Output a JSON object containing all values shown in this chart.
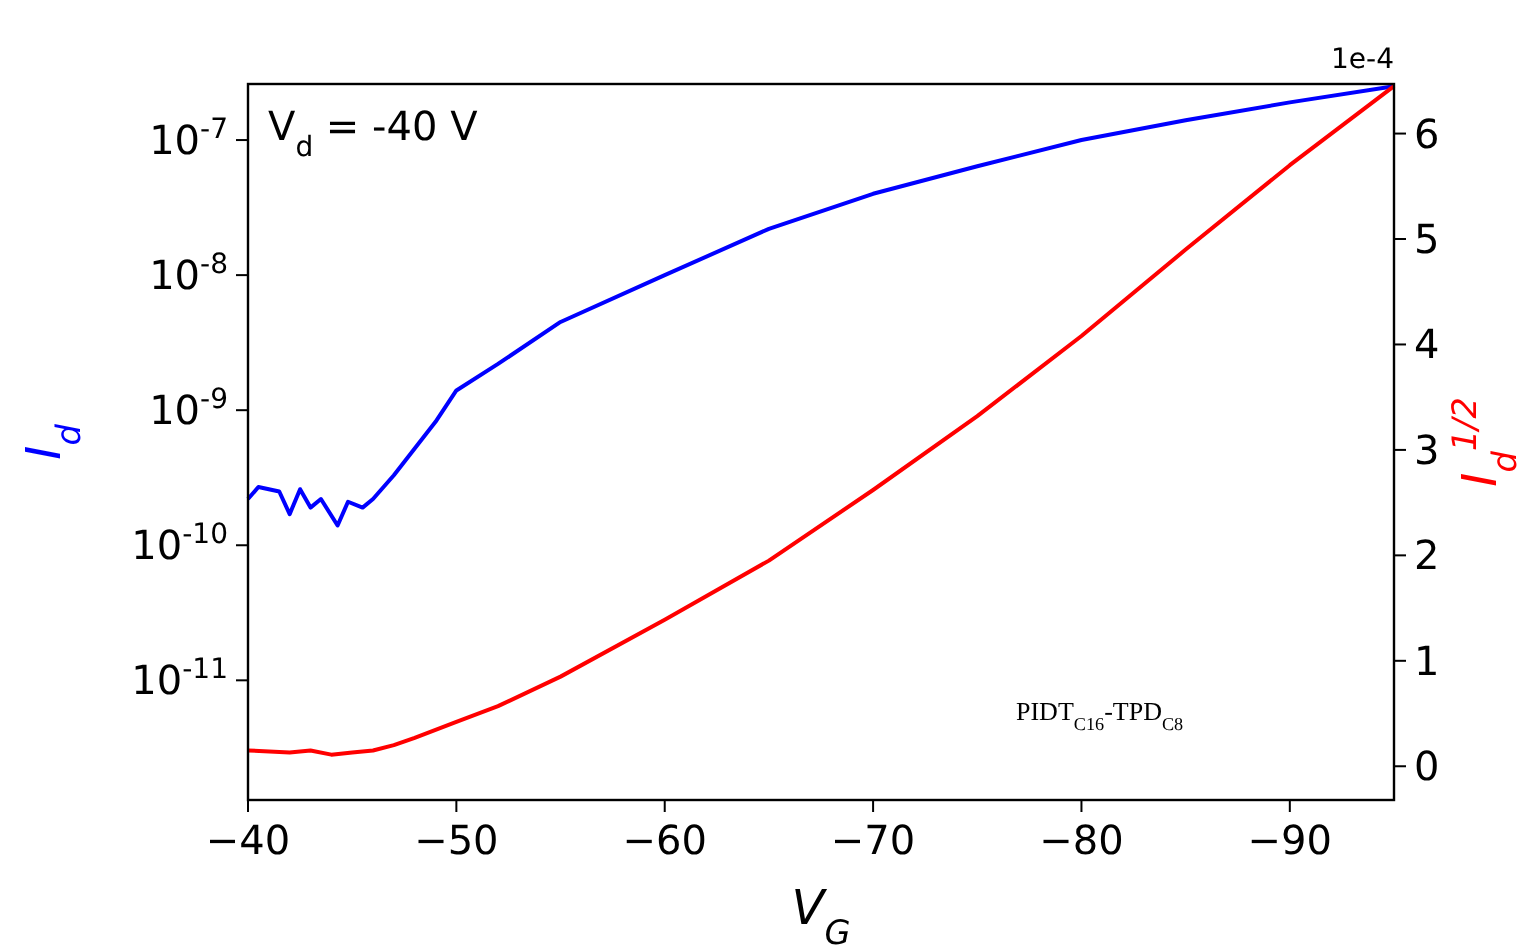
{
  "chart_data": {
    "type": "line",
    "xlabel": "V$_{G}$",
    "ylabel": "I$_{d}$",
    "y2label": "I$_{d}$$^{1/2}$",
    "annotations": [
      "V$_{d}$ = -40 V",
      "PIDT$_{C16}$-TPD$_{C8}$",
      "1e-4"
    ],
    "log": "y",
    "grid": false,
    "marker": "none",
    "line_style": "solid",
    "xlim": [
      -40,
      -95
    ],
    "xticks": [
      {
        "value": -40,
        "label": "−40"
      },
      {
        "value": -50,
        "label": "−50"
      },
      {
        "value": -60,
        "label": "−60"
      },
      {
        "value": -70,
        "label": "−70"
      },
      {
        "value": -80,
        "label": "−80"
      },
      {
        "value": -90,
        "label": "−90"
      }
    ],
    "ylim": [
      1.3e-12,
      2.6e-07
    ],
    "yticks": [
      {
        "value": 1e-11,
        "label": "10$^{-11}$"
      },
      {
        "value": 1e-10,
        "label": "10$^{-10}$"
      },
      {
        "value": 1e-09,
        "label": "10$^{-9}$"
      },
      {
        "value": 1e-08,
        "label": "10$^{-8}$"
      },
      {
        "value": 1e-07,
        "label": "10$^{-7}$"
      }
    ],
    "y2lim": [
      -0.32,
      6.47
    ],
    "y2ticks": [
      0,
      1,
      2,
      3,
      4,
      5,
      6
    ],
    "series": [
      {
        "color": "#0000ff",
        "x": [
          -40,
          -40.5,
          -41.5,
          -42,
          -42.5,
          -43,
          -43.5,
          -44.3,
          -44.8,
          -45.5,
          -46,
          -47,
          -48,
          -49,
          -50,
          -52,
          -55,
          -60,
          -65,
          -70,
          -75,
          -80,
          -85,
          -90,
          -95
        ],
        "values": [
          2.2e-10,
          2.7e-10,
          2.5e-10,
          1.7e-10,
          2.6e-10,
          1.9e-10,
          2.2e-10,
          1.4e-10,
          2.1e-10,
          1.9e-10,
          2.2e-10,
          3.3e-10,
          5.2e-10,
          8.2e-10,
          1.4e-09,
          2.2e-09,
          4.5e-09,
          1e-08,
          2.2e-08,
          4e-08,
          6.4e-08,
          1e-07,
          1.4e-07,
          1.9e-07,
          2.5e-07
        ]
      },
      {
        "color": "#ff0000",
        "axis": "y2",
        "x": [
          -40,
          -42,
          -43,
          -44,
          -45,
          -46,
          -47,
          -48,
          -50,
          -52,
          -55,
          -60,
          -65,
          -70,
          -75,
          -80,
          -85,
          -90,
          -95
        ],
        "values": [
          0.15,
          0.13,
          0.15,
          0.11,
          0.13,
          0.15,
          0.2,
          0.27,
          0.42,
          0.57,
          0.85,
          1.39,
          1.95,
          2.62,
          3.32,
          4.08,
          4.9,
          5.7,
          6.45
        ]
      }
    ]
  }
}
